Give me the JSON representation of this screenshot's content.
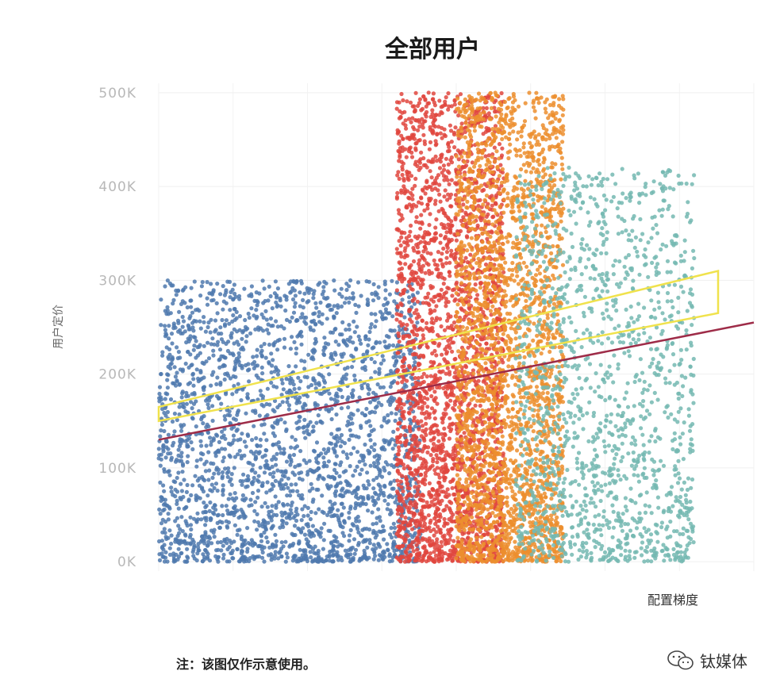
{
  "chart_data": {
    "type": "scatter",
    "title": "全部用户",
    "xlabel": "配置梯度",
    "ylabel": "用户定价",
    "xlim": [
      0,
      100
    ],
    "ylim": [
      -10000,
      510000
    ],
    "y_ticks": [
      "0K",
      "100K",
      "200K",
      "300K",
      "400K",
      "500K"
    ],
    "y_tick_values": [
      0,
      100000,
      200000,
      300000,
      400000,
      500000
    ],
    "grid": true,
    "colors": {
      "blue": "#4f79ae",
      "red": "#e0463e",
      "orange": "#ec8e2e",
      "teal": "#74b9b2",
      "yellow_band": "#f0e24c",
      "trend_line": "#9e2c48"
    },
    "clusters": [
      {
        "name": "",
        "color": "blue",
        "x_range": [
          0,
          44
        ],
        "y_range": [
          0,
          300000
        ],
        "density": "high"
      },
      {
        "name": "",
        "color": "red",
        "x_range": [
          40,
          58
        ],
        "y_range": [
          0,
          500000
        ],
        "density": "high"
      },
      {
        "name": "",
        "color": "orange",
        "x_range": [
          50,
          68
        ],
        "y_range": [
          0,
          500000
        ],
        "density": "high"
      },
      {
        "name": "",
        "color": "teal",
        "x_range": [
          60,
          90
        ],
        "y_range": [
          0,
          420000
        ],
        "density": "medium"
      }
    ],
    "trend_line": {
      "x": [
        0,
        100
      ],
      "y": [
        130000,
        255000
      ]
    },
    "band": {
      "lower": {
        "x": [
          0,
          94
        ],
        "y": [
          150000,
          265000
        ]
      },
      "upper": {
        "x": [
          0,
          94
        ],
        "y": [
          165000,
          310000
        ]
      }
    }
  },
  "note": "注：该图仅作示意使用。",
  "watermark": {
    "text": "钛媒体",
    "icon": "wechat-icon"
  }
}
